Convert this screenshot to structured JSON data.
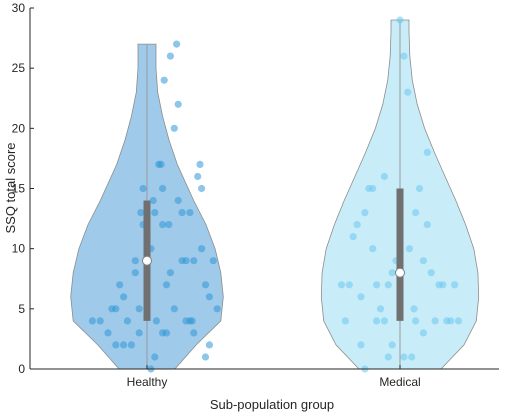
{
  "chart_data": {
    "type": "violin",
    "xlabel": "Sub-population group",
    "ylabel": "SSQ total score",
    "ylim": [
      0,
      30
    ],
    "yticks": [
      "0",
      "5",
      "10",
      "15",
      "20",
      "25",
      "30"
    ],
    "categories": [
      "Healthy",
      "Medical"
    ],
    "grid": false,
    "groups": [
      {
        "name": "Healthy",
        "color": "#7fb8e3",
        "point_color": "#2f98d6",
        "median": 9,
        "q1": 4,
        "q3": 14,
        "max": 27,
        "min": 0,
        "density": [
          [
            0,
            0.34
          ],
          [
            2,
            0.6
          ],
          [
            4,
            0.9
          ],
          [
            6,
            0.93
          ],
          [
            8,
            0.9
          ],
          [
            10,
            0.83
          ],
          [
            12,
            0.72
          ],
          [
            14,
            0.57
          ],
          [
            15.5,
            0.47
          ],
          [
            17,
            0.37
          ],
          [
            19,
            0.27
          ],
          [
            21,
            0.19
          ],
          [
            23,
            0.13
          ],
          [
            25,
            0.11
          ],
          [
            27,
            0.11
          ]
        ],
        "points": [
          [
            -0.6,
            4
          ],
          [
            -0.5,
            3
          ],
          [
            -0.45,
            5
          ],
          [
            -0.4,
            5
          ],
          [
            -0.35,
            7
          ],
          [
            -0.3,
            6
          ],
          [
            -0.25,
            4
          ],
          [
            -0.3,
            2
          ],
          [
            -0.2,
            2
          ],
          [
            -0.15,
            9
          ],
          [
            -0.1,
            3
          ],
          [
            -0.15,
            8
          ],
          [
            -0.1,
            5
          ],
          [
            -0.05,
            12
          ],
          [
            -0.08,
            13
          ],
          [
            -0.05,
            15
          ],
          [
            0.0,
            11
          ],
          [
            0.05,
            10
          ],
          [
            0.08,
            14
          ],
          [
            0.1,
            13
          ],
          [
            0.15,
            17
          ],
          [
            0.18,
            17
          ],
          [
            0.2,
            15
          ],
          [
            0.12,
            4
          ],
          [
            0.2,
            3
          ],
          [
            0.25,
            3
          ],
          [
            0.1,
            1
          ],
          [
            0.25,
            7
          ],
          [
            0.28,
            12
          ],
          [
            0.22,
            24
          ],
          [
            0.3,
            26
          ],
          [
            0.35,
            20
          ],
          [
            0.4,
            22
          ],
          [
            0.38,
            27
          ],
          [
            0.45,
            9
          ],
          [
            0.5,
            9
          ],
          [
            0.55,
            13
          ],
          [
            0.55,
            4
          ],
          [
            0.5,
            4
          ],
          [
            0.6,
            9
          ],
          [
            0.65,
            16
          ],
          [
            0.7,
            15
          ],
          [
            0.68,
            17
          ],
          [
            0.7,
            10
          ],
          [
            0.75,
            7
          ],
          [
            0.75,
            1
          ],
          [
            0.8,
            2
          ],
          [
            0.8,
            6
          ],
          [
            0.85,
            9
          ],
          [
            0.9,
            5
          ],
          [
            -0.7,
            4
          ],
          [
            0.35,
            5
          ],
          [
            0.4,
            14
          ],
          [
            0.05,
            0
          ],
          [
            0.6,
            3
          ],
          [
            0.45,
            13
          ],
          [
            -0.4,
            2
          ],
          [
            0.2,
            12
          ],
          [
            0.3,
            8
          ],
          [
            0.58,
            4
          ]
        ]
      },
      {
        "name": "Medical",
        "color": "#b6e6f6",
        "point_color": "#6cc9ee",
        "median": 8,
        "q1": 4,
        "q3": 15,
        "max": 29,
        "min": 0,
        "density": [
          [
            0,
            0.5
          ],
          [
            2,
            0.78
          ],
          [
            4,
            0.93
          ],
          [
            6,
            0.96
          ],
          [
            8,
            0.95
          ],
          [
            10,
            0.9
          ],
          [
            12,
            0.8
          ],
          [
            14,
            0.68
          ],
          [
            16,
            0.55
          ],
          [
            18,
            0.42
          ],
          [
            20,
            0.3
          ],
          [
            22,
            0.21
          ],
          [
            24,
            0.15
          ],
          [
            26,
            0.12
          ],
          [
            28,
            0.11
          ],
          [
            29,
            0.11
          ]
        ],
        "points": [
          [
            -0.75,
            7
          ],
          [
            -0.7,
            4
          ],
          [
            -0.65,
            7
          ],
          [
            -0.6,
            11
          ],
          [
            -0.55,
            12
          ],
          [
            -0.5,
            6
          ],
          [
            -0.5,
            2
          ],
          [
            -0.45,
            0
          ],
          [
            -0.4,
            15
          ],
          [
            -0.35,
            10
          ],
          [
            -0.35,
            15
          ],
          [
            -0.3,
            7
          ],
          [
            -0.25,
            5
          ],
          [
            -0.2,
            4
          ],
          [
            -0.15,
            1
          ],
          [
            -0.15,
            7
          ],
          [
            -0.1,
            8
          ],
          [
            -0.1,
            2
          ],
          [
            -0.05,
            9
          ],
          [
            0.0,
            29
          ],
          [
            0.05,
            26
          ],
          [
            0.1,
            23
          ],
          [
            0.12,
            10
          ],
          [
            0.15,
            1
          ],
          [
            0.18,
            5
          ],
          [
            0.2,
            13
          ],
          [
            0.25,
            15
          ],
          [
            0.3,
            9
          ],
          [
            0.35,
            12
          ],
          [
            0.35,
            18
          ],
          [
            0.4,
            8
          ],
          [
            0.45,
            4
          ],
          [
            0.5,
            7
          ],
          [
            0.55,
            7
          ],
          [
            0.6,
            4
          ],
          [
            0.65,
            4
          ],
          [
            0.7,
            7
          ],
          [
            0.75,
            4
          ],
          [
            -0.2,
            16
          ],
          [
            0.05,
            1
          ],
          [
            -0.45,
            13
          ],
          [
            0.2,
            4
          ],
          [
            0.3,
            3
          ],
          [
            -0.3,
            4
          ],
          [
            0.0,
            6
          ]
        ]
      }
    ]
  }
}
